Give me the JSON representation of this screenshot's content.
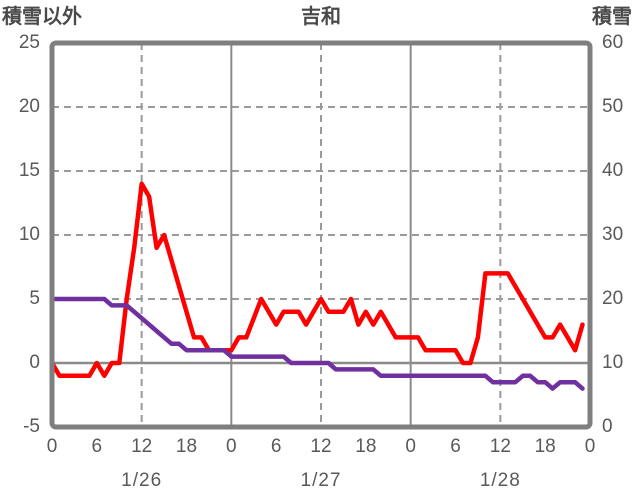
{
  "titles": {
    "left_axis": "積雪以外",
    "chart": "吉和",
    "right_axis": "積雪"
  },
  "colors": {
    "background": "#ffffff",
    "frame": "#7f7f7f",
    "grid_dashed": "#9a9a9a",
    "day_line": "#8a8a8a",
    "zero_line": "#8a8a8a",
    "axis_text": "#595959",
    "title_text": "#4a4a4a",
    "series_red": "#ff0000",
    "series_purple": "#7030a0"
  },
  "chart_data": {
    "type": "line",
    "title": "吉和",
    "x": {
      "unit": "hour",
      "start_hour": 0,
      "end_hour": 72,
      "tick_step_hours": 6,
      "tick_labels": [
        "0",
        "6",
        "12",
        "18",
        "0",
        "6",
        "12",
        "18",
        "0",
        "6",
        "12",
        "18",
        "0"
      ],
      "day_labels": [
        "1/26",
        "1/27",
        "1/28"
      ],
      "day_label_center_hours": [
        12,
        36,
        60
      ]
    },
    "left_axis": {
      "label": "積雪以外",
      "range": [
        -5,
        25
      ],
      "ticks": [
        "25",
        "20",
        "15",
        "10",
        "5",
        "0",
        "-5"
      ],
      "tick_values": [
        25,
        20,
        15,
        10,
        5,
        0,
        -5
      ]
    },
    "right_axis": {
      "label": "積雪",
      "range": [
        0,
        60
      ],
      "ticks": [
        "60",
        "50",
        "40",
        "30",
        "20",
        "10",
        "0"
      ],
      "tick_values": [
        60,
        50,
        40,
        30,
        20,
        10,
        0
      ]
    },
    "grid": {
      "horizontal_dashed_at_left_values": [
        20,
        15,
        10,
        5
      ],
      "zero_line_at_left_value": 0,
      "vertical_dashed_at_hours": [
        12,
        36,
        60
      ],
      "vertical_solid_at_hours": [
        24,
        48
      ]
    },
    "series": [
      {
        "name": "積雪以外",
        "axis": "left",
        "color": "#ff0000",
        "values": [
          0,
          -1,
          -1,
          -1,
          -1,
          -1,
          0,
          -1,
          0,
          0,
          5,
          9,
          14,
          13,
          9,
          10,
          8,
          6,
          4,
          2,
          2,
          1,
          1,
          1,
          1,
          2,
          2,
          3.5,
          5,
          4,
          3,
          4,
          4,
          4,
          3,
          4,
          5,
          4,
          4,
          4,
          5,
          3,
          4,
          3,
          4,
          3,
          2,
          2,
          2,
          2,
          1,
          1,
          1,
          1,
          1,
          0,
          0,
          2,
          7,
          7,
          7,
          7,
          6,
          5,
          4,
          3,
          2,
          2,
          3,
          2,
          1,
          3
        ]
      },
      {
        "name": "積雪",
        "axis": "right",
        "color": "#7030a0",
        "values": [
          20,
          20,
          20,
          20,
          20,
          20,
          20,
          20,
          19,
          19,
          19,
          18,
          17,
          16,
          15,
          14,
          13,
          13,
          12,
          12,
          12,
          12,
          12,
          12,
          11,
          11,
          11,
          11,
          11,
          11,
          11,
          11,
          10,
          10,
          10,
          10,
          10,
          10,
          9,
          9,
          9,
          9,
          9,
          9,
          8,
          8,
          8,
          8,
          8,
          8,
          8,
          8,
          8,
          8,
          8,
          8,
          8,
          8,
          8,
          7,
          7,
          7,
          7,
          8,
          8,
          7,
          7,
          6,
          7,
          7,
          7,
          6
        ]
      }
    ],
    "legend": "none"
  }
}
